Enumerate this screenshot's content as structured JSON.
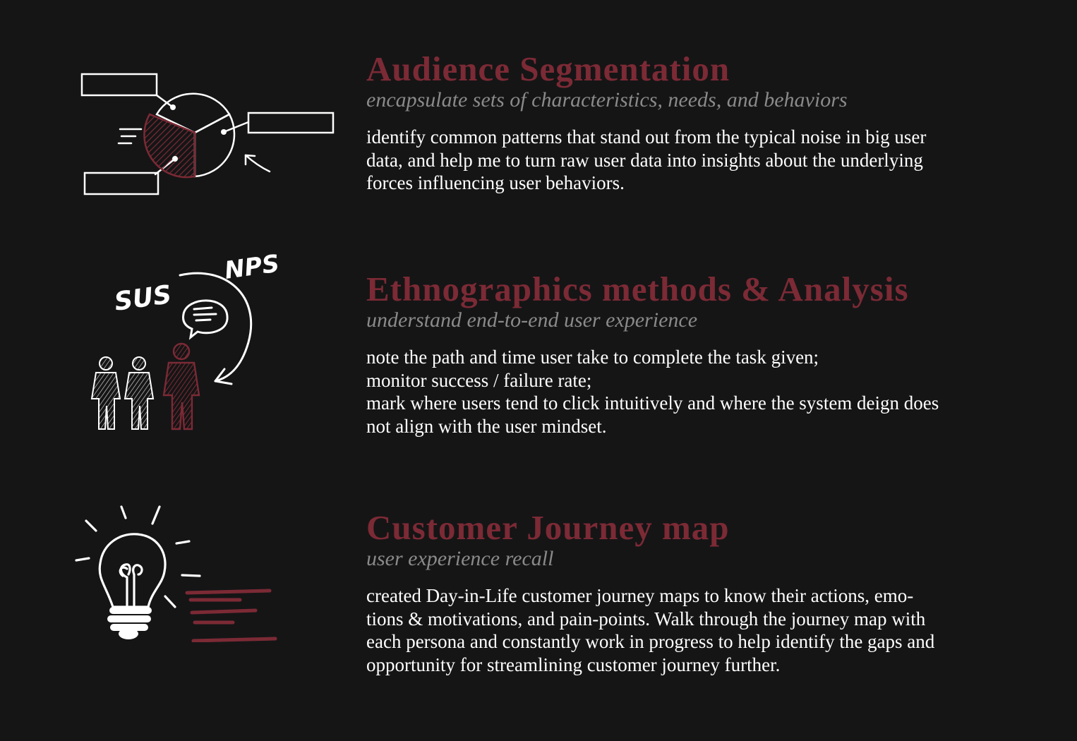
{
  "colors": {
    "background": "#151516",
    "accent": "#7c2a35",
    "subtitle": "#8a8a8a",
    "body": "#ffffff"
  },
  "sections": [
    {
      "title": "Audience Segmentation",
      "subtitle": "encapsulate sets of characteristics, needs, and behaviors",
      "body": [
        "identify common patterns that stand out from the typical noise in big user",
        "data, and help me to turn raw user data into insights about the underlying",
        "forces influencing user behaviors."
      ],
      "icon": "pie-chart-sketch-icon"
    },
    {
      "title": "Ethnographics methods & Analysis",
      "subtitle": "understand end-to-end user experience",
      "body": [
        "note the path and time user take to complete the task given;",
        "monitor success / failure rate;",
        "mark where users tend to click intuitively and where the system deign does",
        "not align with the user mindset."
      ],
      "icon": "user-research-sketch-icon",
      "icon_labels": {
        "left": "SUS",
        "right": "NPS"
      }
    },
    {
      "title": "Customer Journey map",
      "subtitle": "user experience recall",
      "body": [
        "created Day-in-Life customer journey maps to know their actions, emo-",
        "tions & motivations, and pain-points. Walk through the journey map with",
        "each persona and constantly work in progress to help identify the gaps and",
        "opportunity for streamlining customer journey further."
      ],
      "icon": "lightbulb-sketch-icon"
    }
  ]
}
